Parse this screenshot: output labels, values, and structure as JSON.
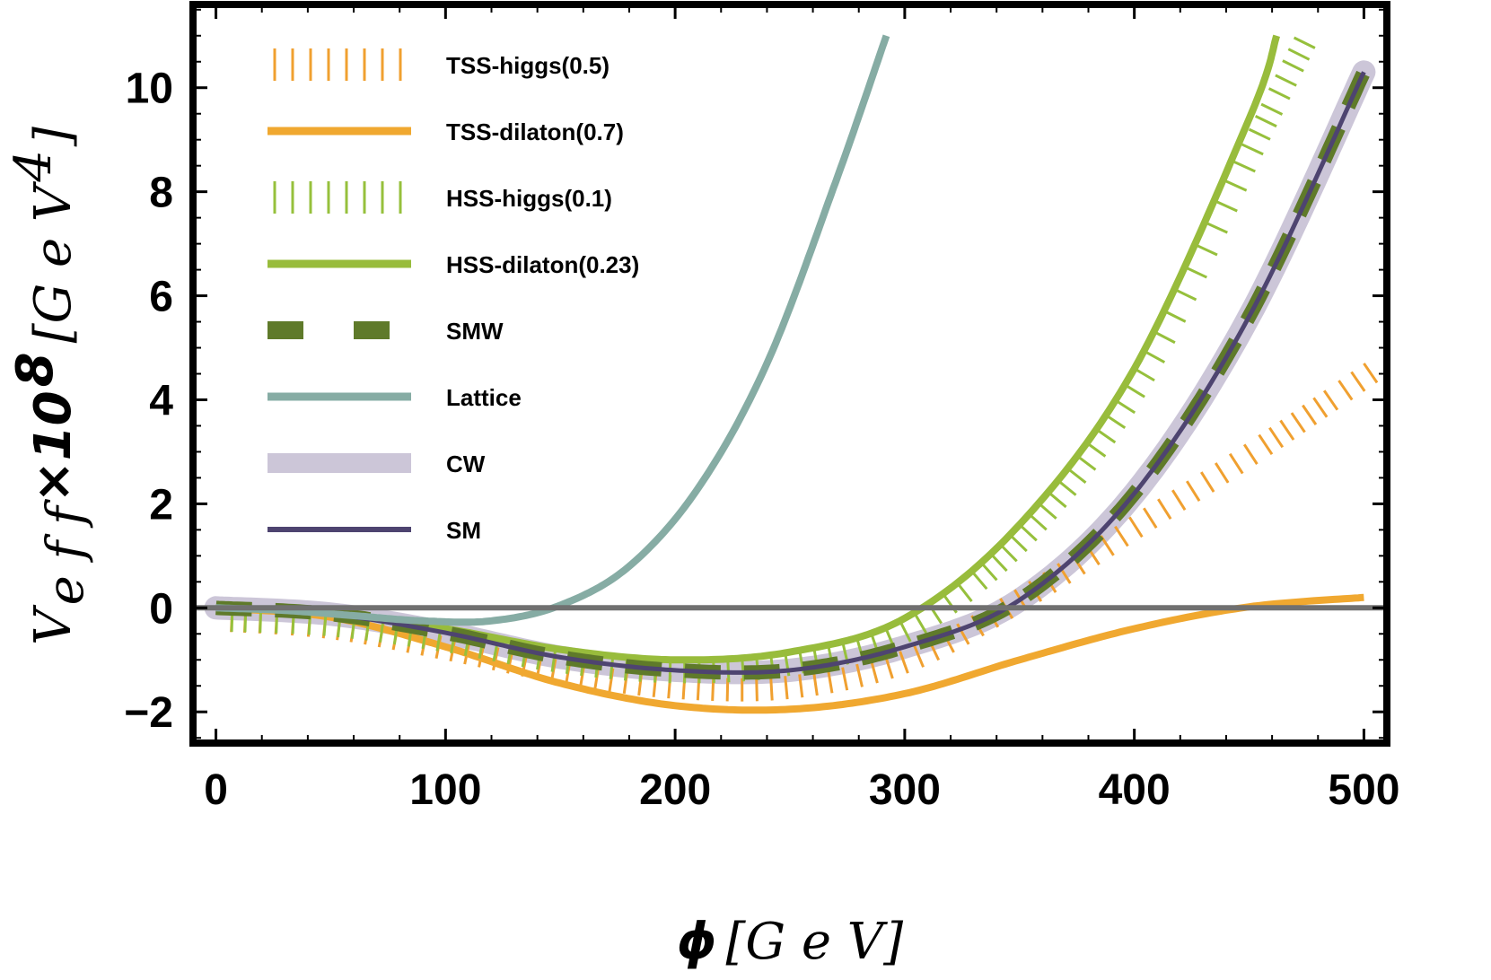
{
  "chart_data": {
    "type": "line",
    "xlabel": "ϕ[G e V]",
    "ylabel": "V_eff × 10^8 [G e V^4]",
    "xlabel_parts": {
      "symbol": "ϕ",
      "unit": "[G e V]"
    },
    "ylabel_parts": {
      "v": "V",
      "sub": "e f f",
      "mult": "×10",
      "exp": "8",
      "unit_open": "[G e V",
      "unit_exp": "4",
      "unit_close": "]"
    },
    "xlim": [
      -10,
      510
    ],
    "ylim": [
      -2.6,
      11.6
    ],
    "x_ticks": [
      0,
      100,
      200,
      300,
      400,
      500
    ],
    "y_ticks": [
      -2,
      0,
      2,
      4,
      6,
      8,
      10
    ],
    "x_tick_labels": [
      "0",
      "100",
      "200",
      "300",
      "400",
      "500"
    ],
    "y_tick_labels": [
      "−2",
      "0",
      "2",
      "4",
      "6",
      "8",
      "10"
    ],
    "legend_position": "top-left",
    "colors": {
      "tss_higgs": "#f0a030",
      "tss_dilaton": "#f0a830",
      "hss_higgs": "#96c03c",
      "hss_dilaton": "#98bc3c",
      "smw": "#5f7a2a",
      "lattice": "#86aca4",
      "cw": "#ccc6d8",
      "sm": "#4e4470",
      "zero_line": "#707070"
    },
    "series": [
      {
        "name": "TSS-higgs(0.5)",
        "style": "hatched",
        "color": "#f0a030",
        "x": [
          0,
          50,
          100,
          150,
          200,
          250,
          300,
          350,
          400,
          450,
          500
        ],
        "y": [
          0,
          -0.15,
          -0.55,
          -1.0,
          -1.3,
          -1.3,
          -0.8,
          0.4,
          1.8,
          3.2,
          4.7
        ]
      },
      {
        "name": "TSS-dilaton(0.7)",
        "style": "solid",
        "color": "#f0a830",
        "x": [
          0,
          50,
          100,
          150,
          200,
          250,
          300,
          350,
          400,
          450,
          500
        ],
        "y": [
          0,
          -0.18,
          -0.75,
          -1.45,
          -1.88,
          -1.95,
          -1.65,
          -1.0,
          -0.4,
          0.02,
          0.2
        ]
      },
      {
        "name": "HSS-higgs(0.1)",
        "style": "hatched",
        "color": "#96c03c",
        "x": [
          0,
          50,
          100,
          150,
          200,
          250,
          300,
          350,
          400,
          450,
          470
        ],
        "y": [
          0,
          -0.1,
          -0.4,
          -0.8,
          -1.0,
          -0.85,
          -0.2,
          1.6,
          4.6,
          9.2,
          11.0
        ]
      },
      {
        "name": "HSS-dilaton(0.23)",
        "style": "solid",
        "color": "#98bc3c",
        "x": [
          0,
          50,
          100,
          150,
          200,
          250,
          300,
          350,
          400,
          450,
          462
        ],
        "y": [
          0,
          -0.1,
          -0.4,
          -0.8,
          -1.0,
          -0.85,
          -0.2,
          1.6,
          4.6,
          9.4,
          11.0
        ]
      },
      {
        "name": "SMW",
        "style": "dashed",
        "color": "#5f7a2a",
        "x": [
          0,
          50,
          100,
          150,
          200,
          250,
          300,
          350,
          400,
          450,
          500
        ],
        "y": [
          0,
          -0.12,
          -0.48,
          -0.95,
          -1.2,
          -1.2,
          -0.75,
          0.15,
          2.2,
          5.6,
          10.3
        ]
      },
      {
        "name": "Lattice",
        "style": "solid",
        "color": "#86aca4",
        "x": [
          0,
          30,
          60,
          90,
          120,
          150,
          180,
          210,
          240,
          270,
          292
        ],
        "y": [
          0,
          -0.05,
          -0.15,
          -0.25,
          -0.25,
          0.05,
          0.8,
          2.3,
          4.7,
          8.2,
          11.0
        ]
      },
      {
        "name": "CW",
        "style": "band",
        "color": "#ccc6d8",
        "x": [
          0,
          50,
          100,
          150,
          200,
          250,
          300,
          350,
          400,
          450,
          500
        ],
        "y": [
          0,
          -0.12,
          -0.48,
          -0.95,
          -1.2,
          -1.2,
          -0.75,
          0.15,
          2.2,
          5.6,
          10.3
        ]
      },
      {
        "name": "SM",
        "style": "solid",
        "color": "#4e4470",
        "x": [
          0,
          50,
          100,
          150,
          200,
          250,
          300,
          350,
          400,
          450,
          500
        ],
        "y": [
          0,
          -0.12,
          -0.48,
          -0.95,
          -1.2,
          -1.2,
          -0.75,
          0.15,
          2.2,
          5.6,
          10.3
        ]
      }
    ]
  }
}
